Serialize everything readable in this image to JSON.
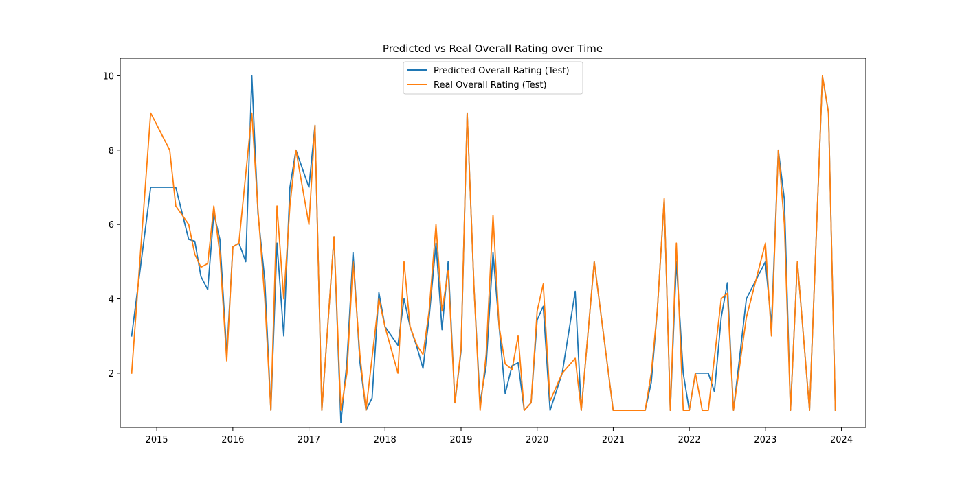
{
  "chart_data": {
    "type": "line",
    "title": "Predicted vs Real Overall Rating over Time",
    "xlabel": "",
    "ylabel": "",
    "x_ticks": [
      "2015",
      "2016",
      "2017",
      "2018",
      "2019",
      "2020",
      "2021",
      "2022",
      "2023",
      "2024"
    ],
    "y_ticks": [
      "2",
      "4",
      "6",
      "8",
      "10"
    ],
    "xlim": [
      2014.52,
      2024.32
    ],
    "ylim": [
      0.54,
      10.47
    ],
    "grid": false,
    "legend_position": "upper center",
    "series": [
      {
        "name": "Predicted Overall Rating (Test)",
        "color": "#1f77b4",
        "points": [
          [
            2014.67,
            3.0
          ],
          [
            2014.92,
            7.0
          ],
          [
            2015.25,
            7.0
          ],
          [
            2015.42,
            5.6
          ],
          [
            2015.5,
            5.55
          ],
          [
            2015.58,
            4.6
          ],
          [
            2015.67,
            4.25
          ],
          [
            2015.75,
            6.3
          ],
          [
            2015.83,
            5.6
          ],
          [
            2015.92,
            2.5
          ],
          [
            2016.0,
            5.4
          ],
          [
            2016.08,
            5.5
          ],
          [
            2016.17,
            5.0
          ],
          [
            2016.25,
            10.0
          ],
          [
            2016.33,
            6.3
          ],
          [
            2016.42,
            4.5
          ],
          [
            2016.5,
            1.0
          ],
          [
            2016.58,
            5.5
          ],
          [
            2016.67,
            3.0
          ],
          [
            2016.75,
            7.0
          ],
          [
            2016.83,
            8.0
          ],
          [
            2017.0,
            7.0
          ],
          [
            2017.08,
            8.67
          ],
          [
            2017.17,
            1.0
          ],
          [
            2017.33,
            5.67
          ],
          [
            2017.42,
            0.67
          ],
          [
            2017.5,
            2.3
          ],
          [
            2017.58,
            5.25
          ],
          [
            2017.67,
            2.3
          ],
          [
            2017.75,
            1.0
          ],
          [
            2017.83,
            1.33
          ],
          [
            2017.92,
            4.17
          ],
          [
            2018.0,
            3.25
          ],
          [
            2018.17,
            2.75
          ],
          [
            2018.25,
            4.0
          ],
          [
            2018.33,
            3.25
          ],
          [
            2018.42,
            2.7
          ],
          [
            2018.5,
            2.13
          ],
          [
            2018.58,
            3.5
          ],
          [
            2018.67,
            5.5
          ],
          [
            2018.75,
            3.17
          ],
          [
            2018.83,
            5.0
          ],
          [
            2018.92,
            1.2
          ],
          [
            2019.0,
            2.6
          ],
          [
            2019.08,
            9.0
          ],
          [
            2019.17,
            4.3
          ],
          [
            2019.25,
            1.2
          ],
          [
            2019.33,
            2.2
          ],
          [
            2019.42,
            5.25
          ],
          [
            2019.5,
            3.25
          ],
          [
            2019.58,
            1.45
          ],
          [
            2019.67,
            2.2
          ],
          [
            2019.75,
            2.28
          ],
          [
            2019.83,
            1.0
          ],
          [
            2019.92,
            1.2
          ],
          [
            2020.0,
            3.43
          ],
          [
            2020.08,
            3.8
          ],
          [
            2020.17,
            1.0
          ],
          [
            2020.33,
            2.0
          ],
          [
            2020.5,
            4.2
          ],
          [
            2020.58,
            1.0
          ],
          [
            2020.75,
            5.0
          ],
          [
            2021.0,
            1.0
          ],
          [
            2021.42,
            1.0
          ],
          [
            2021.5,
            1.75
          ],
          [
            2021.58,
            3.7
          ],
          [
            2021.67,
            6.67
          ],
          [
            2021.75,
            1.0
          ],
          [
            2021.83,
            5.0
          ],
          [
            2021.92,
            2.0
          ],
          [
            2022.0,
            1.0
          ],
          [
            2022.08,
            2.0
          ],
          [
            2022.25,
            2.0
          ],
          [
            2022.33,
            1.5
          ],
          [
            2022.42,
            3.5
          ],
          [
            2022.5,
            4.43
          ],
          [
            2022.58,
            1.0
          ],
          [
            2022.75,
            4.0
          ],
          [
            2023.0,
            5.0
          ],
          [
            2023.08,
            3.3
          ],
          [
            2023.17,
            8.0
          ],
          [
            2023.25,
            6.67
          ],
          [
            2023.33,
            1.0
          ],
          [
            2023.42,
            5.0
          ],
          [
            2023.58,
            1.0
          ],
          [
            2023.75,
            10.0
          ],
          [
            2023.83,
            9.0
          ],
          [
            2023.92,
            1.0
          ]
        ]
      },
      {
        "name": "Real Overall Rating (Test)",
        "color": "#ff7f0e",
        "points": [
          [
            2014.67,
            2.0
          ],
          [
            2014.92,
            9.0
          ],
          [
            2015.17,
            8.0
          ],
          [
            2015.25,
            6.5
          ],
          [
            2015.42,
            6.0
          ],
          [
            2015.5,
            5.2
          ],
          [
            2015.58,
            4.85
          ],
          [
            2015.67,
            4.95
          ],
          [
            2015.75,
            6.5
          ],
          [
            2015.83,
            5.2
          ],
          [
            2015.92,
            2.33
          ],
          [
            2016.0,
            5.4
          ],
          [
            2016.08,
            5.5
          ],
          [
            2016.25,
            9.0
          ],
          [
            2016.33,
            6.4
          ],
          [
            2016.42,
            4.0
          ],
          [
            2016.5,
            1.0
          ],
          [
            2016.58,
            6.5
          ],
          [
            2016.67,
            4.0
          ],
          [
            2016.75,
            6.5
          ],
          [
            2016.83,
            8.0
          ],
          [
            2017.0,
            6.0
          ],
          [
            2017.08,
            8.67
          ],
          [
            2017.17,
            1.0
          ],
          [
            2017.33,
            5.67
          ],
          [
            2017.42,
            1.0
          ],
          [
            2017.5,
            2.0
          ],
          [
            2017.58,
            5.0
          ],
          [
            2017.67,
            2.5
          ],
          [
            2017.75,
            1.0
          ],
          [
            2017.92,
            4.0
          ],
          [
            2018.0,
            3.25
          ],
          [
            2018.17,
            2.0
          ],
          [
            2018.25,
            5.0
          ],
          [
            2018.33,
            3.25
          ],
          [
            2018.42,
            2.75
          ],
          [
            2018.5,
            2.5
          ],
          [
            2018.58,
            3.67
          ],
          [
            2018.67,
            6.0
          ],
          [
            2018.75,
            3.67
          ],
          [
            2018.83,
            4.75
          ],
          [
            2018.92,
            1.2
          ],
          [
            2019.0,
            2.67
          ],
          [
            2019.08,
            9.0
          ],
          [
            2019.17,
            4.3
          ],
          [
            2019.25,
            1.0
          ],
          [
            2019.33,
            2.5
          ],
          [
            2019.42,
            6.25
          ],
          [
            2019.5,
            3.25
          ],
          [
            2019.58,
            2.25
          ],
          [
            2019.67,
            2.1
          ],
          [
            2019.75,
            3.0
          ],
          [
            2019.83,
            1.0
          ],
          [
            2019.92,
            1.2
          ],
          [
            2020.0,
            3.67
          ],
          [
            2020.08,
            4.4
          ],
          [
            2020.17,
            1.25
          ],
          [
            2020.33,
            2.0
          ],
          [
            2020.5,
            2.4
          ],
          [
            2020.58,
            1.0
          ],
          [
            2020.75,
            5.0
          ],
          [
            2021.0,
            1.0
          ],
          [
            2021.42,
            1.0
          ],
          [
            2021.5,
            2.0
          ],
          [
            2021.58,
            3.7
          ],
          [
            2021.67,
            6.7
          ],
          [
            2021.75,
            1.0
          ],
          [
            2021.83,
            5.5
          ],
          [
            2021.92,
            1.0
          ],
          [
            2022.0,
            1.0
          ],
          [
            2022.08,
            2.0
          ],
          [
            2022.17,
            1.0
          ],
          [
            2022.25,
            1.0
          ],
          [
            2022.42,
            4.0
          ],
          [
            2022.5,
            4.15
          ],
          [
            2022.58,
            1.0
          ],
          [
            2022.75,
            3.5
          ],
          [
            2023.0,
            5.5
          ],
          [
            2023.08,
            3.0
          ],
          [
            2023.17,
            8.0
          ],
          [
            2023.25,
            6.0
          ],
          [
            2023.33,
            1.0
          ],
          [
            2023.42,
            5.0
          ],
          [
            2023.58,
            1.0
          ],
          [
            2023.75,
            10.0
          ],
          [
            2023.83,
            9.0
          ],
          [
            2023.92,
            1.0
          ]
        ]
      }
    ]
  }
}
